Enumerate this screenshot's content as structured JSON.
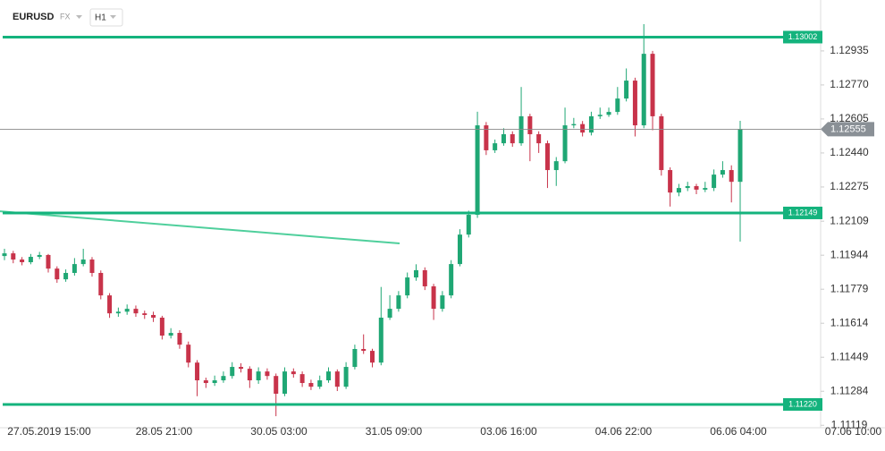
{
  "header": {
    "symbol": "EURUSD",
    "market": "FX",
    "interval": "H1"
  },
  "chart_data": {
    "type": "candlestick",
    "ylim": [
      1.11107,
      1.13182
    ],
    "yticks": [
      1.12935,
      {
        "value": 1.1277,
        "label": "1.12770"
      },
      1.12605,
      {
        "value": 1.1244,
        "label": "1.12440"
      },
      1.12275,
      1.12109,
      1.11944,
      1.11779,
      1.11614,
      1.11449,
      1.11284,
      1.11119
    ],
    "x_labels": [
      "27.05.2019  15:00",
      "28.05  21:00",
      "30.05  03:00",
      "31.05  09:00",
      "03.06  16:00",
      "04.06  22:00",
      "06.06  04:00",
      "07.06  10:00"
    ],
    "up_color": "#1fa774",
    "down_color": "#c8334a",
    "level_color": "#14b37d",
    "levels": [
      1.13002,
      1.12149,
      {
        "value": 1.1122,
        "label": "1.11220"
      }
    ],
    "current_price": 1.12555,
    "trend_line": {
      "start": 1.12157,
      "end": 1.12001
    },
    "candles": [
      [
        1.1194,
        1.11975,
        1.1192,
        1.11953
      ],
      [
        1.11953,
        1.11965,
        1.11905,
        1.11923
      ],
      [
        1.11923,
        1.11935,
        1.11895,
        1.1191
      ],
      [
        1.1191,
        1.1195,
        1.119,
        1.11936
      ],
      [
        1.11936,
        1.1196,
        1.11925,
        1.11945
      ],
      [
        1.11945,
        1.1195,
        1.1186,
        1.11879
      ],
      [
        1.11879,
        1.1189,
        1.1181,
        1.11827
      ],
      [
        1.11827,
        1.11875,
        1.11815,
        1.11858
      ],
      [
        1.11858,
        1.1193,
        1.11845,
        1.11901
      ],
      [
        1.11901,
        1.11975,
        1.1189,
        1.11923
      ],
      [
        1.11923,
        1.11935,
        1.1184,
        1.11858
      ],
      [
        1.11858,
        1.1187,
        1.1173,
        1.11749
      ],
      [
        1.11749,
        1.1176,
        1.1164,
        1.11662
      ],
      [
        1.11662,
        1.1169,
        1.11645,
        1.1167
      ],
      [
        1.1167,
        1.11705,
        1.11655,
        1.11684
      ],
      [
        1.11684,
        1.117,
        1.11645,
        1.11662
      ],
      [
        1.11662,
        1.11675,
        1.11635,
        1.11654
      ],
      [
        1.11654,
        1.1167,
        1.1162,
        1.11641
      ],
      [
        1.11641,
        1.1165,
        1.11535,
        1.11554
      ],
      [
        1.11554,
        1.1159,
        1.1154,
        1.11567
      ],
      [
        1.11567,
        1.1158,
        1.1149,
        1.1151
      ],
      [
        1.1151,
        1.11525,
        1.114,
        1.11423
      ],
      [
        1.11423,
        1.11435,
        1.1126,
        1.11337
      ],
      [
        1.11337,
        1.1135,
        1.113,
        1.11324
      ],
      [
        1.11324,
        1.1136,
        1.1131,
        1.11337
      ],
      [
        1.11337,
        1.1138,
        1.11325,
        1.11358
      ],
      [
        1.11358,
        1.11425,
        1.11345,
        1.11402
      ],
      [
        1.11402,
        1.1142,
        1.11375,
        1.11393
      ],
      [
        1.11393,
        1.11405,
        1.113,
        1.11337
      ],
      [
        1.11337,
        1.114,
        1.1132,
        1.1138
      ],
      [
        1.1138,
        1.11395,
        1.1134,
        1.11358
      ],
      [
        1.11358,
        1.1137,
        1.11163,
        1.11272
      ],
      [
        1.11272,
        1.114,
        1.1126,
        1.1138
      ],
      [
        1.1138,
        1.11395,
        1.1135,
        1.11367
      ],
      [
        1.11367,
        1.1138,
        1.11305,
        1.11324
      ],
      [
        1.11324,
        1.1134,
        1.1129,
        1.11306
      ],
      [
        1.11306,
        1.1136,
        1.11295,
        1.11337
      ],
      [
        1.11337,
        1.114,
        1.11325,
        1.1138
      ],
      [
        1.1138,
        1.1139,
        1.11285,
        1.11306
      ],
      [
        1.11306,
        1.11425,
        1.11295,
        1.11402
      ],
      [
        1.11402,
        1.1151,
        1.1139,
        1.11489
      ],
      [
        1.11489,
        1.1156,
        1.11465,
        1.1148
      ],
      [
        1.1148,
        1.1149,
        1.114,
        1.11423
      ],
      [
        1.11423,
        1.1179,
        1.1141,
        1.11641
      ],
      [
        1.11641,
        1.1175,
        1.1163,
        1.11684
      ],
      [
        1.11684,
        1.1177,
        1.1167,
        1.11749
      ],
      [
        1.11749,
        1.1186,
        1.11735,
        1.11836
      ],
      [
        1.11836,
        1.119,
        1.1182,
        1.11871
      ],
      [
        1.11871,
        1.11885,
        1.11775,
        1.11793
      ],
      [
        1.11793,
        1.11805,
        1.1163,
        1.11684
      ],
      [
        1.11684,
        1.1177,
        1.1167,
        1.11749
      ],
      [
        1.11749,
        1.1192,
        1.11735,
        1.11901
      ],
      [
        1.11901,
        1.1207,
        1.1189,
        1.12044
      ],
      [
        1.12044,
        1.1216,
        1.1203,
        1.1214
      ],
      [
        1.1214,
        1.1264,
        1.12125,
        1.12574
      ],
      [
        1.12574,
        1.1259,
        1.1243,
        1.12453
      ],
      [
        1.12453,
        1.12505,
        1.1244,
        1.12487
      ],
      [
        1.12487,
        1.1256,
        1.12475,
        1.12531
      ],
      [
        1.12531,
        1.12545,
        1.1247,
        1.12487
      ],
      [
        1.12487,
        1.1276,
        1.12475,
        1.12618
      ],
      [
        1.12618,
        1.1263,
        1.124,
        1.12531
      ],
      [
        1.12531,
        1.12545,
        1.1244,
        1.12487
      ],
      [
        1.12487,
        1.125,
        1.1227,
        1.12357
      ],
      [
        1.12357,
        1.1242,
        1.1228,
        1.124
      ],
      [
        1.124,
        1.1266,
        1.1239,
        1.12574
      ],
      [
        1.12574,
        1.1261,
        1.1256,
        1.1258
      ],
      [
        1.1258,
        1.12595,
        1.1252,
        1.12539
      ],
      [
        1.12539,
        1.1264,
        1.12525,
        1.12618
      ],
      [
        1.12618,
        1.1266,
        1.12605,
        1.12625
      ],
      [
        1.12625,
        1.1266,
        1.12615,
        1.12639
      ],
      [
        1.12639,
        1.1276,
        1.12625,
        1.12704
      ],
      [
        1.12704,
        1.1285,
        1.1269,
        1.12791
      ],
      [
        1.12791,
        1.12805,
        1.1252,
        1.12574
      ],
      [
        1.12574,
        1.13065,
        1.1256,
        1.12921
      ],
      [
        1.12921,
        1.12935,
        1.1255,
        1.12618
      ],
      [
        1.12618,
        1.1263,
        1.1233,
        1.12357
      ],
      [
        1.12357,
        1.1237,
        1.1218,
        1.12248
      ],
      [
        1.12248,
        1.1229,
        1.1223,
        1.1227
      ],
      [
        1.1227,
        1.123,
        1.12255,
        1.12279
      ],
      [
        1.12279,
        1.1229,
        1.1224,
        1.12262
      ],
      [
        1.12262,
        1.123,
        1.1225,
        1.1227
      ],
      [
        1.1227,
        1.1236,
        1.12255,
        1.12335
      ],
      [
        1.12335,
        1.124,
        1.1232,
        1.12357
      ],
      [
        1.12357,
        1.1238,
        1.122,
        1.123
      ],
      [
        1.123,
        1.12596,
        1.1201,
        1.12555
      ]
    ]
  }
}
